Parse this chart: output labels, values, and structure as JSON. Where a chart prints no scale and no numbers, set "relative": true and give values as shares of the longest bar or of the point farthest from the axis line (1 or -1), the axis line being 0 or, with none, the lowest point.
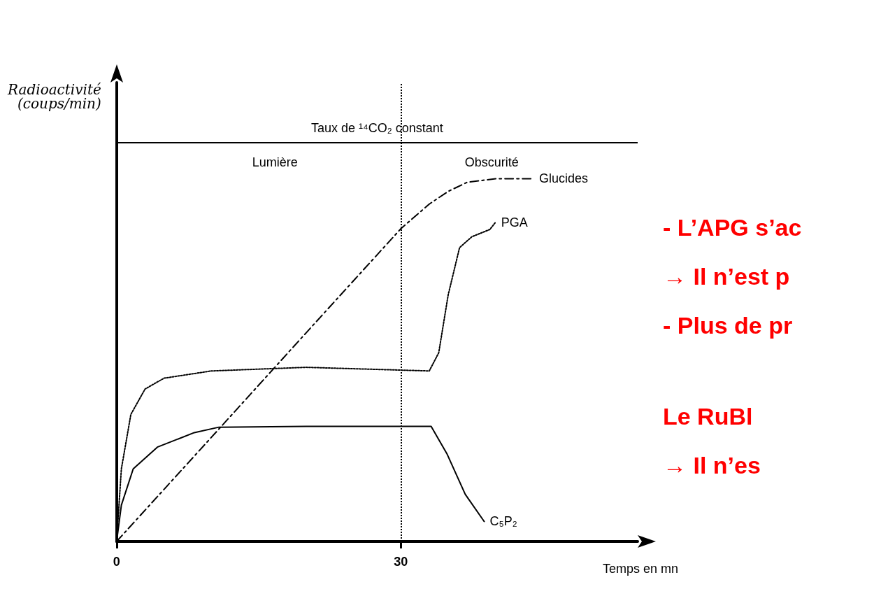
{
  "chart_data": {
    "type": "line",
    "relative": true,
    "xlabel": "Temps en mn",
    "ylabel": "Radioactivité\n(coups/min)",
    "xlim": [
      0,
      55
    ],
    "xticks": [
      0,
      30
    ],
    "grid": false,
    "legend": false,
    "marker": "none",
    "series": [
      {
        "name": "Glucides",
        "color": "#000000",
        "line_style": "dashed",
        "x": [
          0,
          10,
          20,
          30,
          33,
          35,
          37,
          40,
          44
        ],
        "values": [
          0,
          0.287,
          0.575,
          0.862,
          0.93,
          0.965,
          0.99,
          1,
          1
        ]
      },
      {
        "name": "PGA",
        "color": "#000000",
        "line_style": "dotted",
        "x": [
          0,
          0.5,
          1.5,
          3,
          5,
          10,
          20,
          33,
          34,
          35,
          36.2,
          37.5,
          39.4,
          40
        ],
        "values": [
          0,
          0.2,
          0.35,
          0.42,
          0.45,
          0.47,
          0.48,
          0.47,
          0.52,
          0.68,
          0.81,
          0.84,
          0.86,
          0.88
        ]
      },
      {
        "name": "C₅P₂",
        "color": "#000000",
        "line_style": "solid",
        "x": [
          0,
          0.5,
          1.75,
          4.3,
          8.2,
          10.8,
          20,
          33.2,
          34.9,
          36.8,
          38.8
        ],
        "values": [
          0,
          0.1,
          0.2,
          0.26,
          0.3,
          0.315,
          0.317,
          0.317,
          0.24,
          0.13,
          0.055
        ]
      }
    ],
    "ref_lines": [
      {
        "axis": "x",
        "value": 30,
        "line_style": "dotted"
      },
      {
        "axis": "y",
        "value": 1.1,
        "label": "Taux de ¹⁴CO₂ constant",
        "line_style": "solid"
      }
    ],
    "annotations": [
      "Lumière",
      "Obscurité",
      "- L’APG s’ac",
      "→ Il n’est p",
      "- Plus de pr",
      "Le RuBl",
      "→ Il n’es"
    ]
  }
}
